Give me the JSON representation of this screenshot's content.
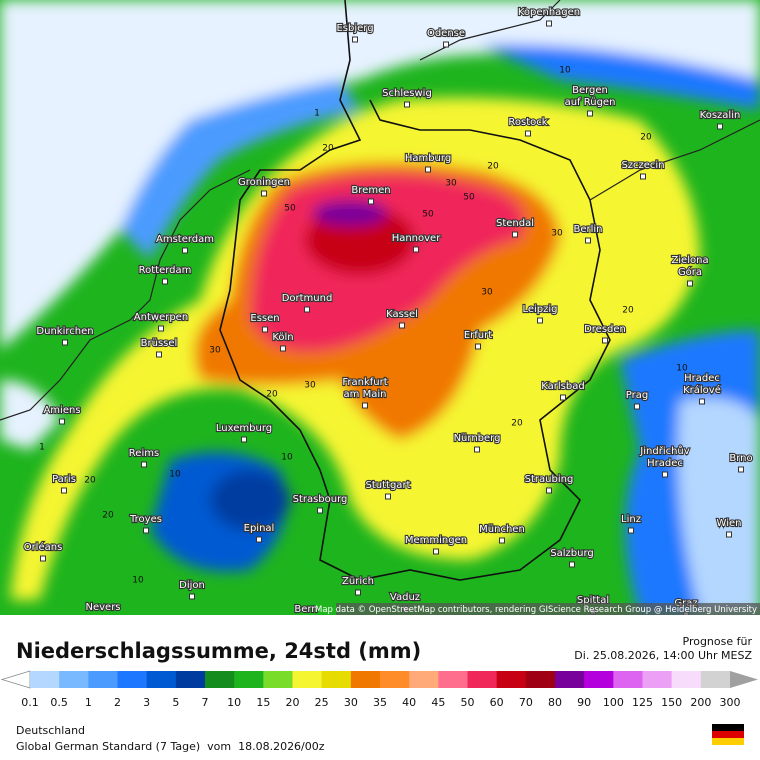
{
  "map": {
    "cities": [
      [
        "Esbjerg"
      ],
      [
        "Odense"
      ],
      [
        "Kopenhagen"
      ],
      [
        "Schleswig"
      ],
      [
        "Bergen",
        "auf Rügen"
      ],
      [
        "Koszalin"
      ],
      [
        "Rostock"
      ],
      [
        "Hamburg"
      ],
      [
        "Szczecin"
      ],
      [
        "Groningen"
      ],
      [
        "Bremen"
      ],
      [
        "Stendal"
      ],
      [
        "Berlin"
      ],
      [
        "Amsterdam"
      ],
      [
        "Hannover"
      ],
      [
        "Rotterdam"
      ],
      [
        "Zielona",
        "Góra"
      ],
      [
        "Dortmund"
      ],
      [
        "Leipzig"
      ],
      [
        "Antwerpen"
      ],
      [
        "Essen"
      ],
      [
        "Kassel"
      ],
      [
        "Dunkirchen"
      ],
      [
        "Dresden"
      ],
      [
        "Köln"
      ],
      [
        "Erfurt"
      ],
      [
        "Brüssel"
      ],
      [
        "Hradec",
        "Králové"
      ],
      [
        "Frankfurt",
        "am Main"
      ],
      [
        "Karlsbad"
      ],
      [
        "Prag"
      ],
      [
        "Amiens"
      ],
      [
        "Luxemburg"
      ],
      [
        "Nürnberg"
      ],
      [
        "Jindřichův",
        "Hradec"
      ],
      [
        "Brno"
      ],
      [
        "Reims"
      ],
      [
        "Paris"
      ],
      [
        "Stuttgart"
      ],
      [
        "Straubing"
      ],
      [
        "Strasbourg"
      ],
      [
        "Troyes"
      ],
      [
        "Epinal"
      ],
      [
        "München"
      ],
      [
        "Linz"
      ],
      [
        "Wien"
      ],
      [
        "Memmingen"
      ],
      [
        "Orléans"
      ],
      [
        "Salzburg"
      ],
      [
        "Dijon"
      ],
      [
        "Zürich"
      ],
      [
        "Vaduz"
      ],
      [
        "Spittal"
      ],
      [
        "Nevers"
      ],
      [
        "Bern"
      ],
      [
        "Graz"
      ]
    ],
    "contour_labels": [
      "20",
      "20",
      "30",
      "50",
      "50",
      "50",
      "30",
      "30",
      "30",
      "30",
      "20",
      "20",
      "20",
      "10",
      "10",
      "20",
      "20",
      "10",
      "20",
      "1",
      "1",
      "10",
      "10"
    ],
    "attribution": "Map data © OpenStreetMap contributors, rendering GIScience Research Group @ Heidelberg University"
  },
  "title": "Niederschlagssumme, 24std (mm)",
  "forecast": {
    "label": "Prognose für",
    "time": "Di. 25.08.2026, 14:00 Uhr MESZ"
  },
  "legend": {
    "ticks": [
      "0.1",
      "0.5",
      "1",
      "2",
      "3",
      "5",
      "7",
      "10",
      "15",
      "20",
      "25",
      "30",
      "35",
      "40",
      "45",
      "50",
      "60",
      "70",
      "80",
      "90",
      "100",
      "125",
      "150",
      "200",
      "300"
    ],
    "colors": [
      "#b4d7ff",
      "#78b9ff",
      "#4b9bff",
      "#1e78ff",
      "#005ad2",
      "#003ca0",
      "#148c1e",
      "#1eb41e",
      "#78dc28",
      "#f5f532",
      "#e6dc00",
      "#f07800",
      "#ff8c28",
      "#ffaa78",
      "#ff6e8c",
      "#f0285a",
      "#c80014",
      "#a00014",
      "#78009b",
      "#b400dc",
      "#dc64f0",
      "#eba0f5",
      "#f8dcfc",
      "#d2d2d2"
    ],
    "under_color": "#ffffff",
    "over_color": "#a0a0a0"
  },
  "region": "Deutschland",
  "model": "Global German Standard (7 Tage)  vom  18.08.2026/00z"
}
